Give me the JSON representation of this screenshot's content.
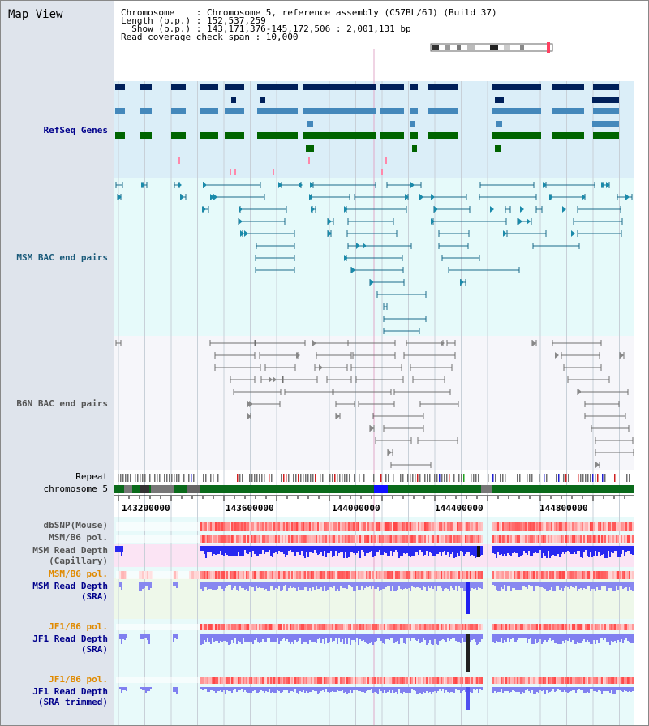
{
  "page": {
    "title": "Map View"
  },
  "info": {
    "line1": "Chromosome    : Chromosome 5, reference assembly (C57BL/6J) (Build 37)",
    "line2": "Length (b.p.) : 152,537,259",
    "line3": "  Show (b.p.) : 143,171,376-145,172,506 : 2,001,131 bp",
    "line4": "Read coverage check span : 10,000"
  },
  "tracks": {
    "refseq": "RefSeq Genes",
    "msm_bac": "MSM BAC end pairs",
    "b6n_bac": "B6N BAC end pairs",
    "repeat": "Repeat",
    "chromosome": "chromosome 5",
    "dbsnp": "dbSNP(Mouse)",
    "msm_b6_pol": "MSM/B6 pol.",
    "msm_depth_cap_1": "MSM Read Depth",
    "msm_depth_cap_2": "(Capillary)",
    "msm_b6_pol_2": "MSM/B6 pol.",
    "msm_depth_sra_1": "MSM Read Depth",
    "msm_depth_sra_2": "(SRA)",
    "jf1_b6_pol": "JF1/B6 pol.",
    "jf1_depth_sra_1": "JF1 Read Depth",
    "jf1_depth_sra_2": "(SRA)",
    "jf1_b6_pol_2": "JF1/B6 pol.",
    "jf1_depth_trim_1": "JF1 Read Depth",
    "jf1_depth_trim_2": "(SRA trimmed)"
  },
  "axis": {
    "ticks": [
      "143200000",
      "143600000",
      "144000000",
      "144400000",
      "144800000"
    ]
  },
  "colors": {
    "navy": "#00205a",
    "steel": "#4488bb",
    "green": "#006400",
    "teal": "#1a6a8a",
    "gray": "#555555",
    "pink": "#ff88aa",
    "orange_label": "#e08a00",
    "blue_label": "#00008b",
    "red": "#ff3030",
    "blue": "#2020ff"
  }
}
